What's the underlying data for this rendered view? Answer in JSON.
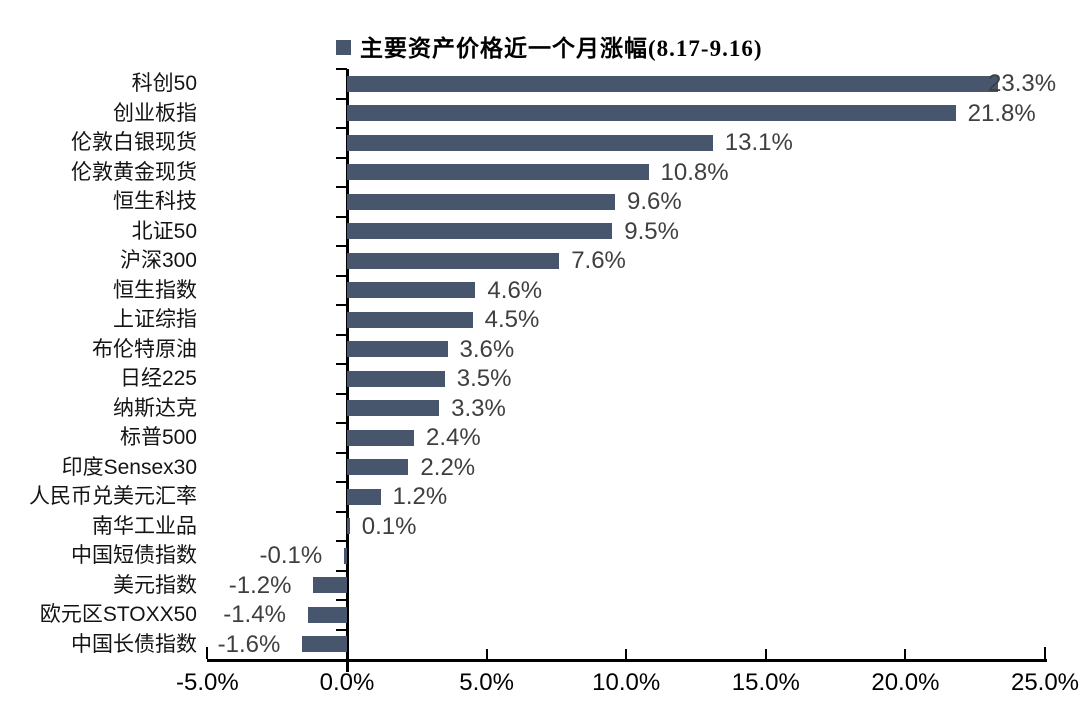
{
  "chart_data": {
    "type": "bar",
    "orientation": "horizontal",
    "title": "主要资产价格近一个月涨幅(8.17-9.16)",
    "categories": [
      "科创50",
      "创业板指",
      "伦敦白银现货",
      "伦敦黄金现货",
      "恒生科技",
      "北证50",
      "沪深300",
      "恒生指数",
      "上证综指",
      "布伦特原油",
      "日经225",
      "纳斯达克",
      "标普500",
      "印度Sensex30",
      "人民币兑美元汇率",
      "南华工业品",
      "中国短债指数",
      "美元指数",
      "欧元区STOXX50",
      "中国长债指数"
    ],
    "values": [
      23.3,
      21.8,
      13.1,
      10.8,
      9.6,
      9.5,
      7.6,
      4.6,
      4.5,
      3.6,
      3.5,
      3.3,
      2.4,
      2.2,
      1.2,
      0.1,
      -0.1,
      -1.2,
      -1.4,
      -1.6
    ],
    "value_labels": [
      "23.3%",
      "21.8%",
      "13.1%",
      "10.8%",
      "9.6%",
      "9.5%",
      "7.6%",
      "4.6%",
      "4.5%",
      "3.6%",
      "3.5%",
      "3.3%",
      "2.4%",
      "2.2%",
      "1.2%",
      "0.1%",
      "-0.1%",
      "-1.2%",
      "-1.4%",
      "-1.6%"
    ],
    "xlabel": "",
    "ylabel": "",
    "xlim": [
      -5,
      25
    ],
    "x_tick_values": [
      -5,
      0,
      5,
      10,
      15,
      20,
      25
    ],
    "x_tick_labels": [
      "-5.0%",
      "0.0%",
      "5.0%",
      "10.0%",
      "15.0%",
      "20.0%",
      "25.0%"
    ],
    "grid": false,
    "legend_position": "top",
    "bar_color": "#47566C",
    "value_label_color": "#3F3F3F",
    "category_label_color": "#141414",
    "axis_color": "#000000",
    "background_color": "#FFFFFF"
  }
}
